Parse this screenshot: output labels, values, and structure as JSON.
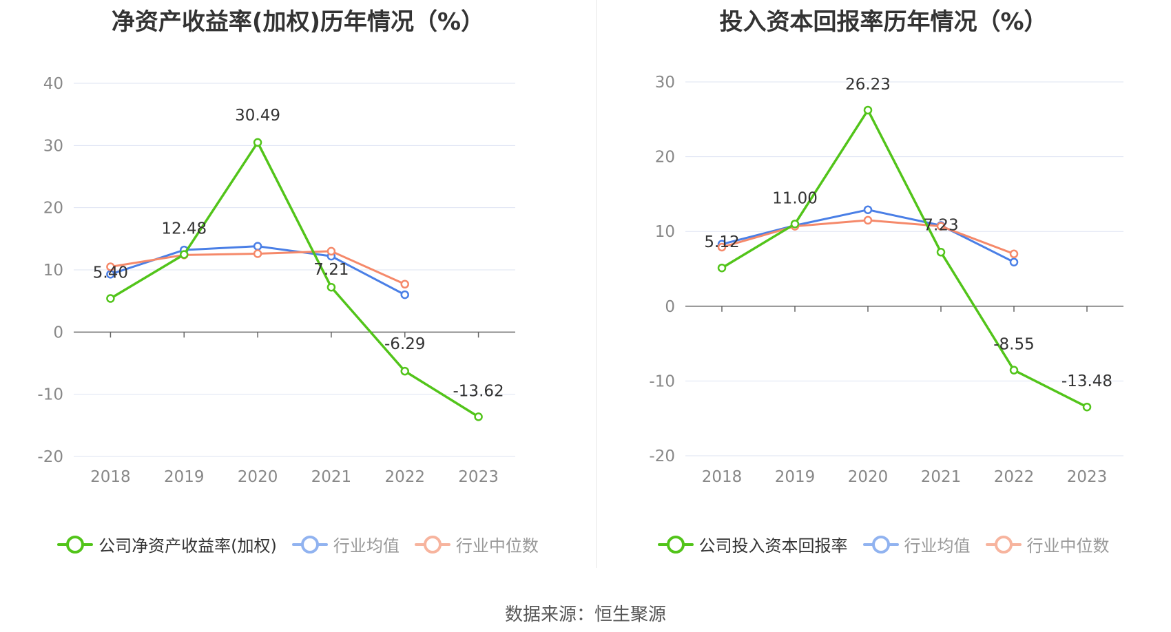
{
  "colors": {
    "company": "#52c41a",
    "average": "#4a7fe6",
    "median": "#f5896a",
    "average_legend": "#91b3f0",
    "median_legend": "#f7b49e",
    "grid": "#dde3f2",
    "axis": "#666666"
  },
  "footer": {
    "source": "数据来源：恒生聚源"
  },
  "chart_data": [
    {
      "type": "line",
      "title": "净资产收益率(加权)历年情况（%）",
      "categories": [
        "2018",
        "2019",
        "2020",
        "2021",
        "2022",
        "2023"
      ],
      "yticks": [
        "40",
        "30",
        "20",
        "10",
        "0",
        "-10",
        "-20"
      ],
      "ylim": [
        -20,
        40
      ],
      "grid": true,
      "legend_position": "bottom",
      "series": [
        {
          "name": "公司净资产收益率(加权)",
          "key": "company",
          "values": [
            5.4,
            12.48,
            30.49,
            7.21,
            -6.29,
            -13.62
          ],
          "labels": [
            "5.40",
            "12.48",
            "30.49",
            "7.21",
            "-6.29",
            "-13.62"
          ]
        },
        {
          "name": "行业均值",
          "key": "average",
          "values": [
            9.3,
            13.2,
            13.8,
            12.2,
            6.0,
            null
          ]
        },
        {
          "name": "行业中位数",
          "key": "median",
          "values": [
            10.5,
            12.4,
            12.6,
            13.0,
            7.7,
            null
          ]
        }
      ]
    },
    {
      "type": "line",
      "title": "投入资本回报率历年情况（%）",
      "categories": [
        "2018",
        "2019",
        "2020",
        "2021",
        "2022",
        "2023"
      ],
      "yticks": [
        "30",
        "20",
        "10",
        "0",
        "-10",
        "-20"
      ],
      "ylim": [
        -20,
        30
      ],
      "grid": true,
      "legend_position": "bottom",
      "series": [
        {
          "name": "公司投入资本回报率",
          "key": "company",
          "values": [
            5.12,
            11.0,
            26.23,
            7.23,
            -8.55,
            -13.48
          ],
          "labels": [
            "5.12",
            "11.00",
            "26.23",
            "7.23",
            "-8.55",
            "-13.48"
          ]
        },
        {
          "name": "行业均值",
          "key": "average",
          "values": [
            8.3,
            10.8,
            12.9,
            10.8,
            5.9,
            null
          ]
        },
        {
          "name": "行业中位数",
          "key": "median",
          "values": [
            7.9,
            10.7,
            11.5,
            10.7,
            7.0,
            null
          ]
        }
      ]
    }
  ]
}
